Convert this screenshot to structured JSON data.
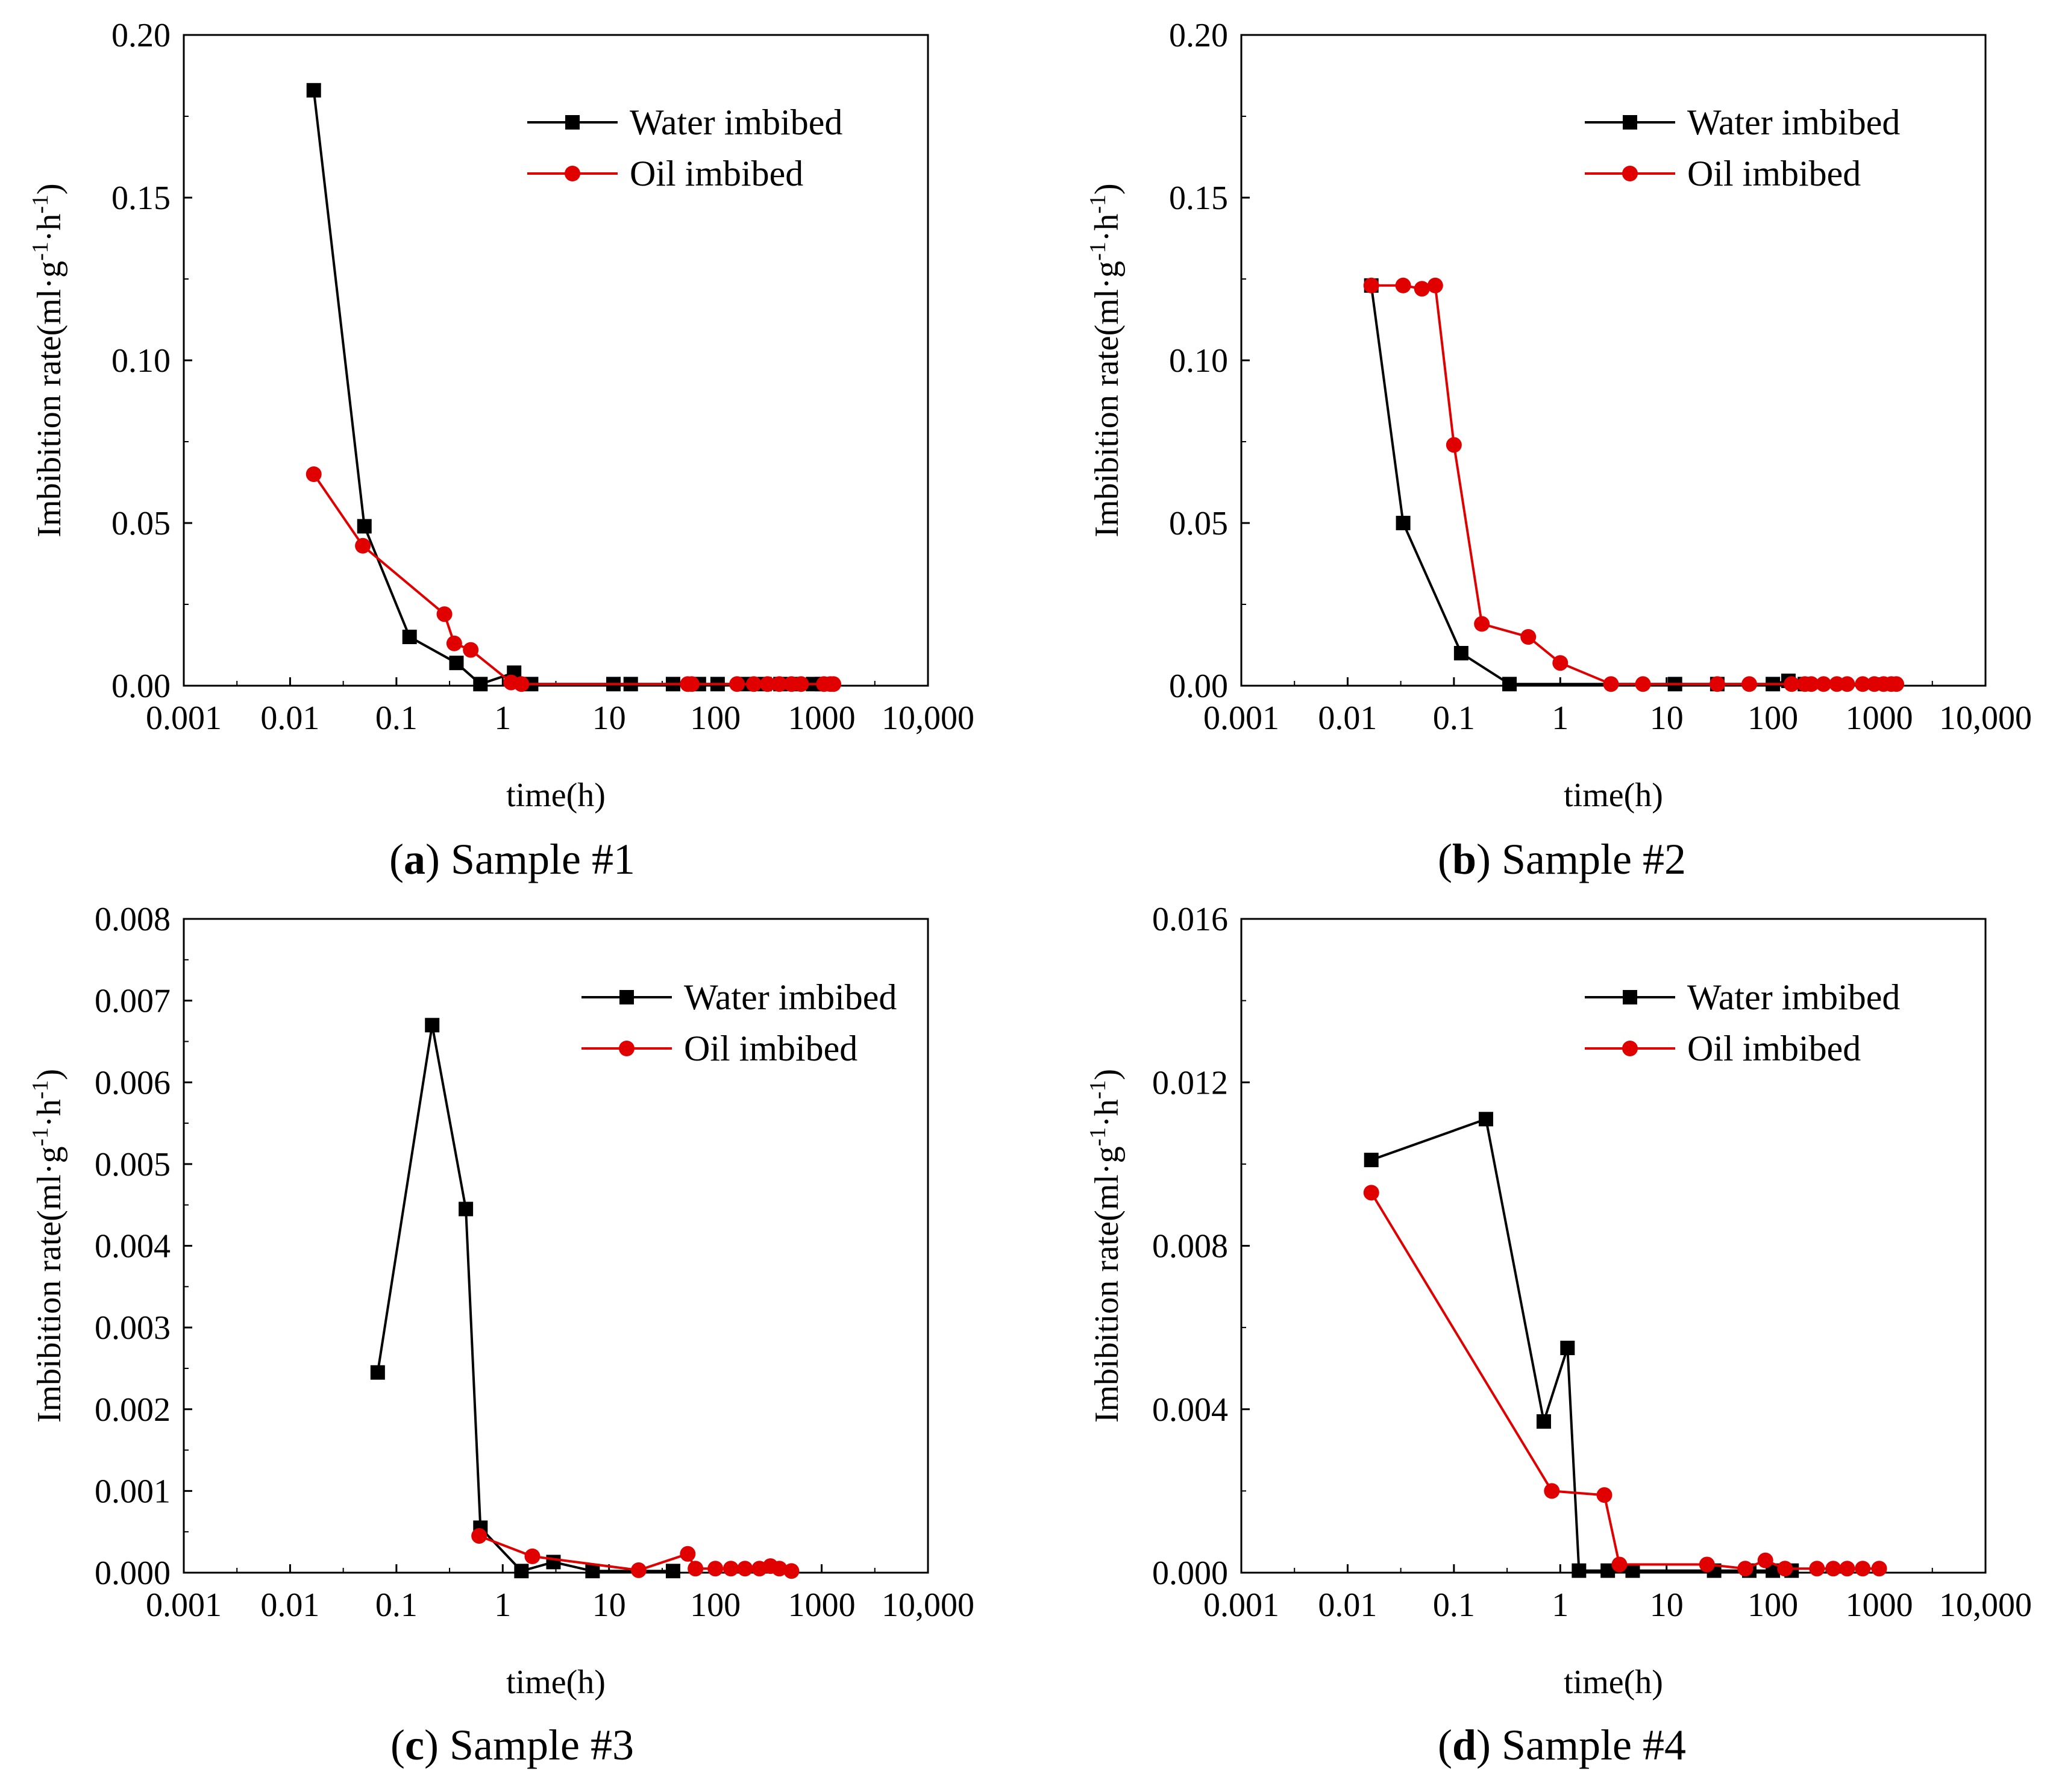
{
  "figure": {
    "xlabel": "time(h)",
    "ylabel_prefix": "Imbibition rate(ml·g",
    "ylabel_sup1": "-1",
    "ylabel_mid": "·h",
    "ylabel_sup2": "-1",
    "ylabel_suffix": ")",
    "series_colors": {
      "water": "#000000",
      "oil": "#e00000"
    }
  },
  "chart_data": [
    {
      "type": "line",
      "x_scale": "log",
      "caption": {
        "open": "(",
        "letter": "a",
        "text": ") Sample #1"
      },
      "xlabel": "time(h)",
      "ylabel": "Imbibition rate(ml·g-1·h-1)",
      "xlim": [
        0.001,
        10000
      ],
      "x_ticks": [
        0.001,
        0.01,
        0.1,
        1,
        10,
        100,
        1000,
        10000
      ],
      "x_tick_labels": [
        "0.001",
        "0.01",
        "0.1",
        "1",
        "10",
        "100",
        "1000",
        "10,000"
      ],
      "ylim": [
        0,
        0.2
      ],
      "y_ticks": [
        0,
        0.05,
        0.1,
        0.15,
        0.2
      ],
      "y_tick_labels": [
        "0.00",
        "0.05",
        "0.10",
        "0.15",
        "0.20"
      ],
      "legend": [
        "Water imbibed",
        "Oil imbibed"
      ],
      "legend_position": "top-right",
      "series": [
        {
          "name": "Water imbibed",
          "marker": "square",
          "color": "#000000",
          "x": [
            0.0167,
            0.05,
            0.133,
            0.367,
            0.617,
            1.28,
            1.85,
            11.0,
            16.0,
            40.0,
            70.0,
            105.0,
            190.0,
            290.0,
            410.0,
            570.0,
            830.0,
            1010.0
          ],
          "y": [
            0.183,
            0.049,
            0.015,
            0.007,
            0.0005,
            0.004,
            0.0005,
            0.0005,
            0.0005,
            0.0005,
            0.0005,
            0.0005,
            0.0005,
            0.0005,
            0.0005,
            0.0005,
            0.0005,
            0.0005
          ]
        },
        {
          "name": "Oil imbibed",
          "marker": "circle",
          "color": "#e00000",
          "x": [
            0.0167,
            0.0483,
            0.283,
            0.35,
            0.5,
            1.2,
            1.5,
            55.0,
            60.0,
            160.0,
            230.0,
            310.0,
            400.0,
            520.0,
            640.0,
            1050.0,
            1210.0,
            1290.0
          ],
          "y": [
            0.065,
            0.043,
            0.022,
            0.013,
            0.011,
            0.001,
            0.0005,
            0.0005,
            0.0005,
            0.0005,
            0.0005,
            0.0005,
            0.0005,
            0.0005,
            0.0005,
            0.0005,
            0.0005,
            0.0005
          ]
        }
      ]
    },
    {
      "type": "line",
      "x_scale": "log",
      "caption": {
        "open": "(",
        "letter": "b",
        "text": ") Sample #2"
      },
      "xlabel": "time(h)",
      "ylabel": "Imbibition rate(ml·g-1·h-1)",
      "xlim": [
        0.001,
        10000
      ],
      "x_ticks": [
        0.001,
        0.01,
        0.1,
        1,
        10,
        100,
        1000,
        10000
      ],
      "x_tick_labels": [
        "0.001",
        "0.01",
        "0.1",
        "1",
        "10",
        "100",
        "1000",
        "10,000"
      ],
      "ylim": [
        0,
        0.2
      ],
      "y_ticks": [
        0,
        0.05,
        0.1,
        0.15,
        0.2
      ],
      "y_tick_labels": [
        "0.00",
        "0.05",
        "0.10",
        "0.15",
        "0.20"
      ],
      "legend": [
        "Water imbibed",
        "Oil imbibed"
      ],
      "legend_position": "top-right",
      "series": [
        {
          "name": "Water imbibed",
          "marker": "square",
          "color": "#000000",
          "x": [
            0.0167,
            0.0333,
            0.117,
            0.333,
            12.0,
            30.0,
            100.0,
            140.0,
            200.0
          ],
          "y": [
            0.123,
            0.05,
            0.01,
            0.0005,
            0.0005,
            0.0005,
            0.0005,
            0.0015,
            0.0005
          ]
        },
        {
          "name": "Oil imbibed",
          "marker": "circle",
          "color": "#e00000",
          "x": [
            0.0167,
            0.0333,
            0.05,
            0.0667,
            0.1,
            0.183,
            0.5,
            1.0,
            3.0,
            6.0,
            30.0,
            60.0,
            150.0,
            200.0,
            230.0,
            300.0,
            400.0,
            500.0,
            700.0,
            900.0,
            1100.0,
            1300.0,
            1450.0
          ],
          "y": [
            0.123,
            0.123,
            0.122,
            0.123,
            0.074,
            0.019,
            0.015,
            0.007,
            0.0005,
            0.0005,
            0.0005,
            0.0005,
            0.0005,
            0.0005,
            0.0005,
            0.0005,
            0.0005,
            0.0005,
            0.0005,
            0.0005,
            0.0005,
            0.0005,
            0.0005
          ]
        }
      ]
    },
    {
      "type": "line",
      "x_scale": "log",
      "caption": {
        "open": "(",
        "letter": "c",
        "text": ") Sample #3"
      },
      "xlabel": "time(h)",
      "ylabel": "Imbibition rate(ml·g-1·h-1)",
      "xlim": [
        0.001,
        10000
      ],
      "x_ticks": [
        0.001,
        0.01,
        0.1,
        1,
        10,
        100,
        1000,
        10000
      ],
      "x_tick_labels": [
        "0.001",
        "0.01",
        "0.1",
        "1",
        "10",
        "100",
        "1000",
        "10,000"
      ],
      "ylim": [
        0,
        0.008
      ],
      "y_ticks": [
        0,
        0.001,
        0.002,
        0.003,
        0.004,
        0.005,
        0.006,
        0.007,
        0.008
      ],
      "y_tick_labels": [
        "0.000",
        "0.001",
        "0.002",
        "0.003",
        "0.004",
        "0.005",
        "0.006",
        "0.007",
        "0.008"
      ],
      "legend": [
        "Water imbibed",
        "Oil imbibed"
      ],
      "legend_position": "top-right",
      "series": [
        {
          "name": "Water imbibed",
          "marker": "square",
          "color": "#000000",
          "x": [
            0.0667,
            0.217,
            0.45,
            0.617,
            1.5,
            3.0,
            7.0,
            40.0
          ],
          "y": [
            0.00245,
            0.0067,
            0.00445,
            0.00055,
            2e-05,
            0.00013,
            2e-05,
            2e-05
          ]
        },
        {
          "name": "Oil imbibed",
          "marker": "circle",
          "color": "#e00000",
          "x": [
            0.6,
            1.9,
            19.0,
            55.0,
            65.0,
            100.0,
            140.0,
            190.0,
            260.0,
            330.0,
            400.0,
            520.0
          ],
          "y": [
            0.00045,
            0.0002,
            3e-05,
            0.00023,
            5e-05,
            5e-05,
            5e-05,
            5e-05,
            5e-05,
            8e-05,
            5e-05,
            2e-05
          ]
        }
      ]
    },
    {
      "type": "line",
      "x_scale": "log",
      "caption": {
        "open": "(",
        "letter": "d",
        "text": ") Sample #4"
      },
      "xlabel": "time(h)",
      "ylabel": "Imbibition rate(ml·g-1·h-1)",
      "xlim": [
        0.001,
        10000
      ],
      "x_ticks": [
        0.001,
        0.01,
        0.1,
        1,
        10,
        100,
        1000,
        10000
      ],
      "x_tick_labels": [
        "0.001",
        "0.01",
        "0.1",
        "1",
        "10",
        "100",
        "1000",
        "10,000"
      ],
      "ylim": [
        0,
        0.016
      ],
      "y_ticks": [
        0,
        0.004,
        0.008,
        0.012,
        0.016
      ],
      "y_tick_labels": [
        "0.000",
        "0.004",
        "0.008",
        "0.012",
        "0.016"
      ],
      "legend": [
        "Water imbibed",
        "Oil imbibed"
      ],
      "legend_position": "top-right",
      "series": [
        {
          "name": "Water imbibed",
          "marker": "square",
          "color": "#000000",
          "x": [
            0.0167,
            0.2,
            0.7,
            1.17,
            1.5,
            2.8,
            4.8,
            28.0,
            60.0,
            100.0,
            150.0
          ],
          "y": [
            0.0101,
            0.0111,
            0.0037,
            0.0055,
            5e-05,
            5e-05,
            5e-05,
            5e-05,
            5e-05,
            5e-05,
            5e-05
          ]
        },
        {
          "name": "Oil imbibed",
          "marker": "circle",
          "color": "#e00000",
          "x": [
            0.0167,
            0.833,
            2.6,
            3.6,
            24.0,
            55.0,
            85.0,
            130.0,
            260.0,
            370.0,
            500.0,
            700.0,
            1000.0
          ],
          "y": [
            0.0093,
            0.002,
            0.0019,
            0.0002,
            0.0002,
            0.0001,
            0.0003,
            0.0001,
            0.0001,
            0.0001,
            0.0001,
            0.0001,
            0.0001
          ]
        }
      ]
    }
  ]
}
